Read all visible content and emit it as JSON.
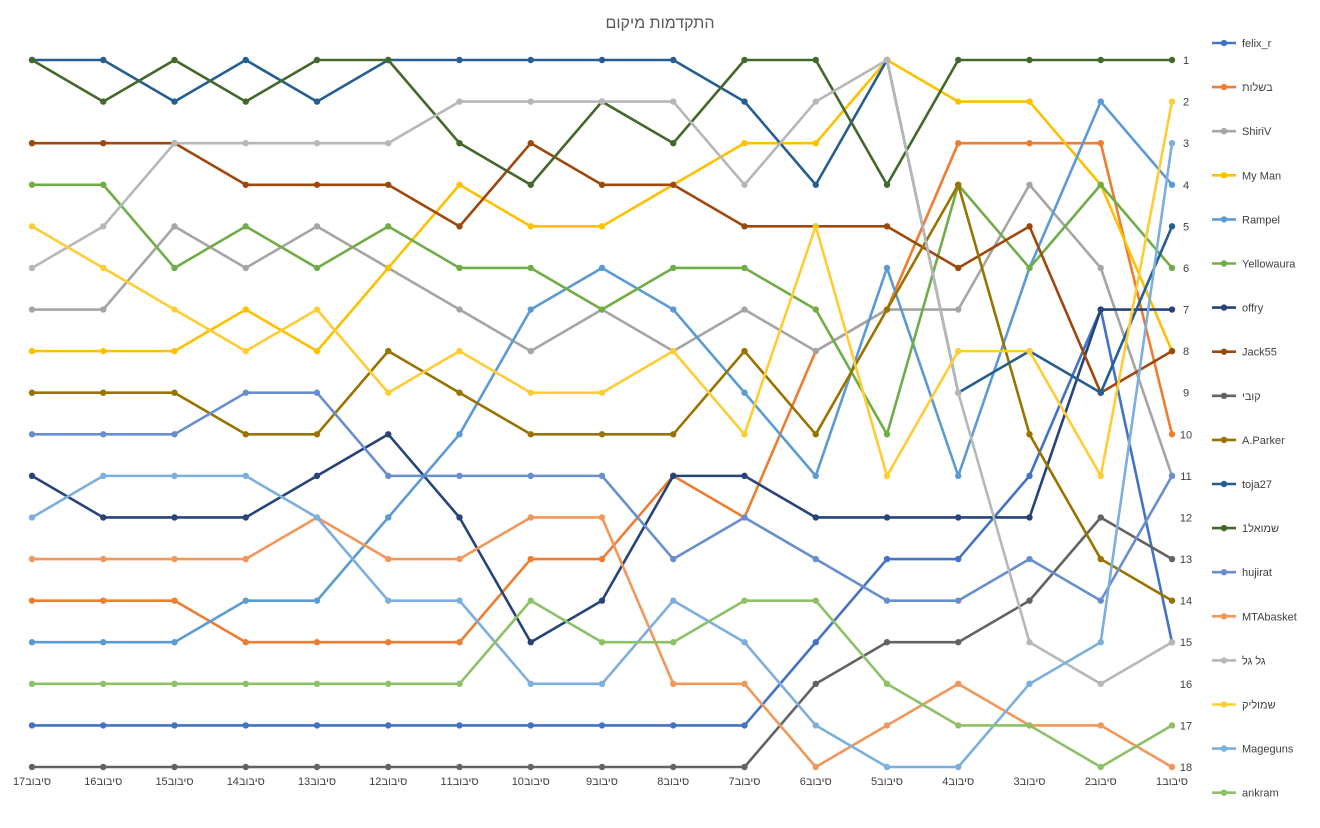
{
  "chart_data": {
    "type": "line",
    "title": "התקדמות מיקום",
    "categories": [
      "סיבוב17",
      "סיבוב16",
      "סיבוב15",
      "סיבוב14",
      "סיבוב13",
      "סיבוב12",
      "סיבוב11",
      "סיבוב10",
      "סיבוב9",
      "סיבוב8",
      "סיבוב7",
      "סיבוב6",
      "סיבוב5",
      "סיבוב4",
      "סיבוב3",
      "סיבוב2",
      "סיבוב1"
    ],
    "y_axis": {
      "min": 1,
      "max": 18,
      "reversed": true,
      "position": "right",
      "ticks": [
        "1",
        "2",
        "3",
        "4",
        "5",
        "6",
        "7",
        "8",
        "9",
        "10",
        "11",
        "12",
        "13",
        "14",
        "15",
        "16",
        "17",
        "18"
      ]
    },
    "legend_position": "right",
    "series": [
      {
        "name": "felix_r",
        "color": "#4472c4",
        "values": [
          17,
          17,
          17,
          17,
          17,
          17,
          17,
          17,
          17,
          17,
          17,
          15,
          13,
          13,
          11,
          7,
          15
        ]
      },
      {
        "name": "בשלות",
        "color": "#ed7d31",
        "values": [
          14,
          14,
          14,
          15,
          15,
          15,
          15,
          13,
          13,
          11,
          12,
          8,
          7,
          3,
          3,
          3,
          10
        ]
      },
      {
        "name": "ShiriV",
        "color": "#a5a5a5",
        "values": [
          7,
          7,
          5,
          6,
          5,
          6,
          7,
          8,
          7,
          8,
          7,
          8,
          7,
          7,
          4,
          6,
          11
        ]
      },
      {
        "name": "My Man",
        "color": "#ffc000",
        "values": [
          8,
          8,
          8,
          7,
          8,
          6,
          4,
          5,
          5,
          4,
          3,
          3,
          1,
          2,
          2,
          4,
          8
        ]
      },
      {
        "name": "Rampel",
        "color": "#5b9bd5",
        "values": [
          15,
          15,
          15,
          14,
          14,
          12,
          10,
          7,
          6,
          7,
          9,
          11,
          6,
          11,
          6,
          2,
          4
        ]
      },
      {
        "name": "Yellowaura",
        "color": "#70ad47",
        "values": [
          4,
          4,
          6,
          5,
          6,
          5,
          6,
          6,
          7,
          6,
          6,
          7,
          10,
          4,
          6,
          4,
          6
        ]
      },
      {
        "name": "offry",
        "color": "#264478",
        "values": [
          11,
          12,
          12,
          12,
          11,
          10,
          12,
          15,
          14,
          11,
          11,
          12,
          12,
          12,
          12,
          7,
          7
        ]
      },
      {
        "name": "Jack55",
        "color": "#9e480e",
        "values": [
          3,
          3,
          3,
          4,
          4,
          4,
          5,
          3,
          4,
          4,
          5,
          5,
          5,
          6,
          5,
          9,
          8
        ]
      },
      {
        "name": "קובי",
        "color": "#636363",
        "values": [
          18,
          18,
          18,
          18,
          18,
          18,
          18,
          18,
          18,
          18,
          18,
          16,
          15,
          15,
          14,
          12,
          13
        ]
      },
      {
        "name": "A.Parker",
        "color": "#997300",
        "values": [
          9,
          9,
          9,
          10,
          10,
          8,
          9,
          10,
          10,
          10,
          8,
          10,
          7,
          4,
          10,
          13,
          14
        ]
      },
      {
        "name": "toja27",
        "color": "#255e91",
        "values": [
          1,
          1,
          2,
          1,
          2,
          1,
          1,
          1,
          1,
          1,
          2,
          4,
          1,
          9,
          8,
          9,
          5
        ]
      },
      {
        "name": "שמואל1",
        "color": "#43682b",
        "values": [
          1,
          2,
          1,
          2,
          1,
          1,
          3,
          4,
          2,
          3,
          1,
          1,
          4,
          1,
          1,
          1,
          1
        ]
      },
      {
        "name": "hujirat",
        "color": "#698ed0",
        "values": [
          10,
          10,
          10,
          9,
          9,
          11,
          11,
          11,
          11,
          13,
          12,
          13,
          14,
          14,
          13,
          14,
          11
        ]
      },
      {
        "name": "MTAbasket",
        "color": "#f1975a",
        "values": [
          13,
          13,
          13,
          13,
          12,
          13,
          13,
          12,
          12,
          16,
          16,
          18,
          17,
          16,
          17,
          17,
          18
        ]
      },
      {
        "name": "גל גל",
        "color": "#b7b7b7",
        "values": [
          6,
          5,
          3,
          3,
          3,
          3,
          2,
          2,
          2,
          2,
          4,
          2,
          1,
          9,
          15,
          16,
          15
        ]
      },
      {
        "name": "שמוליק",
        "color": "#ffcd33",
        "values": [
          5,
          6,
          7,
          8,
          7,
          9,
          8,
          9,
          9,
          8,
          10,
          5,
          11,
          8,
          8,
          11,
          2
        ]
      },
      {
        "name": "Mageguns",
        "color": "#7cafdd",
        "values": [
          12,
          11,
          11,
          11,
          12,
          14,
          14,
          16,
          16,
          14,
          15,
          17,
          18,
          18,
          16,
          15,
          3
        ]
      },
      {
        "name": "ankram",
        "color": "#8cc168",
        "values": [
          16,
          16,
          16,
          16,
          16,
          16,
          16,
          14,
          15,
          15,
          14,
          14,
          16,
          17,
          17,
          18,
          17
        ]
      }
    ]
  }
}
